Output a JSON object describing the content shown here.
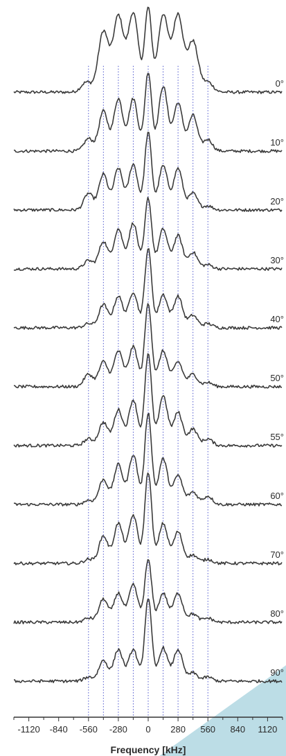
{
  "chart_data": {
    "type": "line",
    "xlabel": "Frequency [kHz]",
    "xlim": [
      -1260,
      1260
    ],
    "x_ticks": [
      -1120,
      -840,
      -560,
      -280,
      0,
      280,
      560,
      840,
      1120
    ],
    "x_tick_labels": [
      "-1120",
      "-840",
      "-560",
      "-280",
      "0",
      "280",
      "560",
      "840",
      "1120"
    ],
    "reference_lines_kHz": [
      -560,
      -420,
      -280,
      -140,
      0,
      140,
      280,
      420,
      560
    ],
    "grid": false,
    "stacked": true,
    "colors": {
      "trace": "#3a3a3a",
      "reference_line": "#3b45c8",
      "axis": "#333333",
      "corner": "#bcdde6"
    },
    "series": [
      {
        "name": "0°",
        "peaks": [
          {
            "x": -580,
            "y": 0.12
          },
          {
            "x": -420,
            "y": 0.73
          },
          {
            "x": -280,
            "y": 0.91
          },
          {
            "x": -140,
            "y": 0.95
          },
          {
            "x": 0,
            "y": 1.0
          },
          {
            "x": 140,
            "y": 0.93
          },
          {
            "x": 280,
            "y": 0.93
          },
          {
            "x": 420,
            "y": 0.61
          },
          {
            "x": 560,
            "y": 0.12
          }
        ]
      },
      {
        "name": "10°",
        "peaks": [
          {
            "x": -560,
            "y": 0.15
          },
          {
            "x": -420,
            "y": 0.48
          },
          {
            "x": -280,
            "y": 0.63
          },
          {
            "x": -140,
            "y": 0.63
          },
          {
            "x": 0,
            "y": 0.95
          },
          {
            "x": 140,
            "y": 0.78
          },
          {
            "x": 280,
            "y": 0.58
          },
          {
            "x": 420,
            "y": 0.43
          },
          {
            "x": 560,
            "y": 0.14
          }
        ]
      },
      {
        "name": "20°",
        "peaks": [
          {
            "x": -560,
            "y": 0.2
          },
          {
            "x": -420,
            "y": 0.43
          },
          {
            "x": -280,
            "y": 0.5
          },
          {
            "x": -140,
            "y": 0.55
          },
          {
            "x": 0,
            "y": 0.93
          },
          {
            "x": 140,
            "y": 0.53
          },
          {
            "x": 280,
            "y": 0.5
          },
          {
            "x": 420,
            "y": 0.2
          },
          {
            "x": 560,
            "y": 0.05
          }
        ]
      },
      {
        "name": "30°",
        "peaks": [
          {
            "x": -560,
            "y": 0.1
          },
          {
            "x": -420,
            "y": 0.33
          },
          {
            "x": -280,
            "y": 0.48
          },
          {
            "x": -140,
            "y": 0.55
          },
          {
            "x": 0,
            "y": 0.85
          },
          {
            "x": 140,
            "y": 0.48
          },
          {
            "x": 280,
            "y": 0.4
          },
          {
            "x": 420,
            "y": 0.2
          },
          {
            "x": 560,
            "y": 0.05
          }
        ]
      },
      {
        "name": "40°",
        "peaks": [
          {
            "x": -560,
            "y": 0.05
          },
          {
            "x": -420,
            "y": 0.28
          },
          {
            "x": -280,
            "y": 0.38
          },
          {
            "x": -140,
            "y": 0.43
          },
          {
            "x": 0,
            "y": 0.95
          },
          {
            "x": 140,
            "y": 0.4
          },
          {
            "x": 280,
            "y": 0.38
          },
          {
            "x": 420,
            "y": 0.15
          },
          {
            "x": 560,
            "y": 0.05
          }
        ]
      },
      {
        "name": "50°",
        "peaks": [
          {
            "x": -560,
            "y": 0.15
          },
          {
            "x": -420,
            "y": 0.3
          },
          {
            "x": -280,
            "y": 0.43
          },
          {
            "x": -140,
            "y": 0.48
          },
          {
            "x": 0,
            "y": 1.0
          },
          {
            "x": 140,
            "y": 0.43
          },
          {
            "x": 280,
            "y": 0.3
          },
          {
            "x": 420,
            "y": 0.15
          },
          {
            "x": 560,
            "y": 0.05
          }
        ]
      },
      {
        "name": "55°",
        "peaks": [
          {
            "x": -560,
            "y": 0.08
          },
          {
            "x": -420,
            "y": 0.28
          },
          {
            "x": -280,
            "y": 0.43
          },
          {
            "x": -140,
            "y": 0.55
          },
          {
            "x": 0,
            "y": 1.1
          },
          {
            "x": 140,
            "y": 0.6
          },
          {
            "x": 280,
            "y": 0.4
          },
          {
            "x": 420,
            "y": 0.2
          },
          {
            "x": 560,
            "y": 0.08
          }
        ]
      },
      {
        "name": "60°",
        "peaks": [
          {
            "x": -560,
            "y": 0.05
          },
          {
            "x": -420,
            "y": 0.3
          },
          {
            "x": -280,
            "y": 0.48
          },
          {
            "x": -140,
            "y": 0.6
          },
          {
            "x": 0,
            "y": 1.1
          },
          {
            "x": 140,
            "y": 0.55
          },
          {
            "x": 280,
            "y": 0.35
          },
          {
            "x": 420,
            "y": 0.15
          },
          {
            "x": 560,
            "y": 0.1
          }
        ]
      },
      {
        "name": "70°",
        "peaks": [
          {
            "x": -560,
            "y": 0.05
          },
          {
            "x": -420,
            "y": 0.33
          },
          {
            "x": -280,
            "y": 0.48
          },
          {
            "x": -140,
            "y": 0.58
          },
          {
            "x": 0,
            "y": 1.1
          },
          {
            "x": 140,
            "y": 0.48
          },
          {
            "x": 280,
            "y": 0.38
          },
          {
            "x": 420,
            "y": 0.1
          },
          {
            "x": 560,
            "y": 0.05
          }
        ]
      },
      {
        "name": "80°",
        "peaks": [
          {
            "x": -560,
            "y": 0.05
          },
          {
            "x": -420,
            "y": 0.28
          },
          {
            "x": -280,
            "y": 0.35
          },
          {
            "x": -140,
            "y": 0.45
          },
          {
            "x": 0,
            "y": 0.75
          },
          {
            "x": 140,
            "y": 0.35
          },
          {
            "x": 280,
            "y": 0.35
          },
          {
            "x": 420,
            "y": 0.1
          },
          {
            "x": 560,
            "y": 0.05
          }
        ]
      },
      {
        "name": "90°",
        "peaks": [
          {
            "x": -560,
            "y": 0.05
          },
          {
            "x": -420,
            "y": 0.25
          },
          {
            "x": -280,
            "y": 0.38
          },
          {
            "x": -140,
            "y": 0.38
          },
          {
            "x": 0,
            "y": 1.0
          },
          {
            "x": 140,
            "y": 0.4
          },
          {
            "x": 280,
            "y": 0.38
          },
          {
            "x": 420,
            "y": 0.1
          },
          {
            "x": 560,
            "y": 0.05
          }
        ]
      }
    ]
  }
}
